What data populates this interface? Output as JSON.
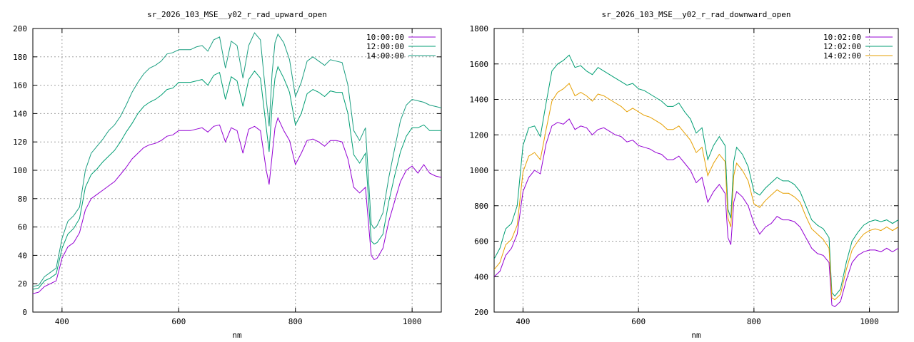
{
  "chart_data": [
    {
      "type": "line",
      "title": "sr_2026_103_MSE__y02_r_rad_upward_open",
      "xlabel": "nm",
      "ylabel": "",
      "xlim": [
        350,
        1050
      ],
      "ylim": [
        0,
        200
      ],
      "xticks": [
        400,
        600,
        800,
        1000
      ],
      "yticks": [
        0,
        20,
        40,
        60,
        80,
        100,
        120,
        140,
        160,
        180,
        200
      ],
      "grid": true,
      "legend": "top-right",
      "x": [
        350,
        360,
        370,
        380,
        390,
        400,
        410,
        420,
        430,
        440,
        450,
        460,
        470,
        480,
        490,
        500,
        510,
        520,
        530,
        540,
        550,
        560,
        570,
        580,
        590,
        600,
        610,
        620,
        630,
        640,
        650,
        660,
        670,
        680,
        690,
        700,
        710,
        720,
        730,
        740,
        750,
        755,
        760,
        765,
        770,
        780,
        790,
        800,
        810,
        820,
        830,
        840,
        850,
        860,
        870,
        880,
        890,
        900,
        910,
        920,
        930,
        935,
        940,
        950,
        960,
        970,
        980,
        990,
        1000,
        1010,
        1020,
        1030,
        1040,
        1050
      ],
      "series": [
        {
          "name": "10:00:00",
          "color": "#9400d3",
          "values": [
            13,
            14,
            18,
            20,
            22,
            38,
            46,
            49,
            56,
            72,
            80,
            83,
            86,
            89,
            92,
            97,
            102,
            108,
            112,
            116,
            118,
            119,
            121,
            124,
            125,
            128,
            128,
            128,
            129,
            130,
            127,
            131,
            132,
            120,
            130,
            128,
            112,
            129,
            131,
            128,
            100,
            90,
            110,
            130,
            137,
            128,
            121,
            104,
            112,
            121,
            122,
            120,
            117,
            121,
            121,
            120,
            108,
            88,
            84,
            88,
            40,
            37,
            38,
            45,
            64,
            78,
            92,
            100,
            103,
            98,
            104,
            98,
            96,
            95
          ]
        },
        {
          "name": "12:00:00",
          "color": "#009e73",
          "values": [
            16,
            17,
            22,
            24,
            27,
            45,
            55,
            59,
            66,
            88,
            97,
            101,
            106,
            110,
            114,
            120,
            127,
            133,
            140,
            145,
            148,
            150,
            153,
            157,
            158,
            162,
            162,
            162,
            163,
            164,
            160,
            167,
            169,
            150,
            166,
            163,
            145,
            164,
            170,
            165,
            130,
            113,
            145,
            165,
            173,
            165,
            155,
            132,
            140,
            154,
            157,
            155,
            152,
            156,
            155,
            155,
            140,
            111,
            105,
            112,
            50,
            48,
            49,
            55,
            78,
            96,
            113,
            124,
            130,
            130,
            132,
            128,
            128,
            128
          ]
        },
        {
          "name": "14:00:00",
          "color": "#1a9e80",
          "values": [
            18,
            19,
            25,
            28,
            31,
            52,
            64,
            68,
            74,
            100,
            112,
            117,
            122,
            128,
            132,
            138,
            146,
            155,
            162,
            168,
            172,
            174,
            177,
            182,
            183,
            185,
            185,
            185,
            187,
            188,
            184,
            192,
            194,
            172,
            191,
            188,
            165,
            188,
            197,
            192,
            150,
            131,
            168,
            190,
            196,
            190,
            178,
            152,
            162,
            177,
            180,
            177,
            174,
            178,
            177,
            176,
            160,
            128,
            121,
            130,
            62,
            59,
            61,
            70,
            95,
            115,
            135,
            146,
            150,
            149,
            148,
            146,
            145,
            144
          ]
        }
      ]
    },
    {
      "type": "line",
      "title": "sr_2026_103_MSE__y02_r_rad_downward_open",
      "xlabel": "nm",
      "ylabel": "",
      "xlim": [
        350,
        1050
      ],
      "ylim": [
        200,
        1800
      ],
      "xticks": [
        400,
        600,
        800,
        1000
      ],
      "yticks": [
        200,
        400,
        600,
        800,
        1000,
        1200,
        1400,
        1600,
        1800
      ],
      "grid": true,
      "legend": "top-right",
      "x": [
        350,
        360,
        370,
        380,
        390,
        400,
        410,
        420,
        430,
        440,
        450,
        460,
        470,
        480,
        490,
        500,
        510,
        520,
        530,
        540,
        550,
        560,
        570,
        580,
        590,
        600,
        610,
        620,
        630,
        640,
        650,
        660,
        670,
        680,
        690,
        700,
        710,
        720,
        730,
        740,
        750,
        755,
        760,
        765,
        770,
        780,
        790,
        800,
        810,
        820,
        830,
        840,
        850,
        860,
        870,
        880,
        890,
        900,
        910,
        920,
        930,
        935,
        940,
        950,
        960,
        970,
        980,
        990,
        1000,
        1010,
        1020,
        1030,
        1040,
        1050
      ],
      "series": [
        {
          "name": "10:02:00",
          "color": "#9400d3",
          "values": [
            400,
            430,
            520,
            560,
            640,
            880,
            960,
            1000,
            980,
            1150,
            1250,
            1270,
            1260,
            1290,
            1230,
            1250,
            1240,
            1200,
            1230,
            1240,
            1220,
            1200,
            1190,
            1160,
            1170,
            1140,
            1130,
            1120,
            1100,
            1090,
            1060,
            1060,
            1080,
            1040,
            1000,
            930,
            960,
            820,
            880,
            920,
            870,
            620,
            580,
            820,
            880,
            850,
            800,
            700,
            640,
            680,
            700,
            740,
            720,
            720,
            710,
            680,
            620,
            560,
            530,
            520,
            480,
            240,
            230,
            260,
            380,
            480,
            520,
            540,
            550,
            550,
            540,
            560,
            540,
            560
          ]
        },
        {
          "name": "12:02:00",
          "color": "#009e73",
          "values": [
            500,
            560,
            670,
            700,
            800,
            1140,
            1240,
            1250,
            1190,
            1380,
            1560,
            1600,
            1620,
            1650,
            1580,
            1590,
            1560,
            1540,
            1580,
            1560,
            1540,
            1520,
            1500,
            1480,
            1490,
            1460,
            1450,
            1430,
            1410,
            1390,
            1360,
            1360,
            1380,
            1330,
            1290,
            1210,
            1240,
            1060,
            1140,
            1190,
            1140,
            780,
            730,
            1050,
            1130,
            1090,
            1020,
            880,
            860,
            900,
            930,
            960,
            940,
            940,
            920,
            880,
            800,
            720,
            690,
            670,
            620,
            310,
            290,
            330,
            480,
            600,
            650,
            690,
            710,
            720,
            710,
            720,
            700,
            720
          ]
        },
        {
          "name": "14:02:00",
          "color": "#e69f00",
          "values": [
            440,
            480,
            580,
            610,
            690,
            990,
            1080,
            1100,
            1060,
            1230,
            1390,
            1440,
            1460,
            1490,
            1420,
            1440,
            1420,
            1390,
            1430,
            1420,
            1400,
            1380,
            1360,
            1330,
            1350,
            1330,
            1310,
            1300,
            1280,
            1260,
            1230,
            1230,
            1250,
            1210,
            1170,
            1100,
            1130,
            970,
            1040,
            1090,
            1050,
            730,
            680,
            970,
            1040,
            1000,
            940,
            810,
            790,
            830,
            860,
            890,
            870,
            870,
            850,
            820,
            740,
            670,
            640,
            610,
            560,
            280,
            270,
            300,
            440,
            550,
            600,
            640,
            660,
            670,
            660,
            680,
            660,
            680
          ]
        }
      ]
    }
  ]
}
